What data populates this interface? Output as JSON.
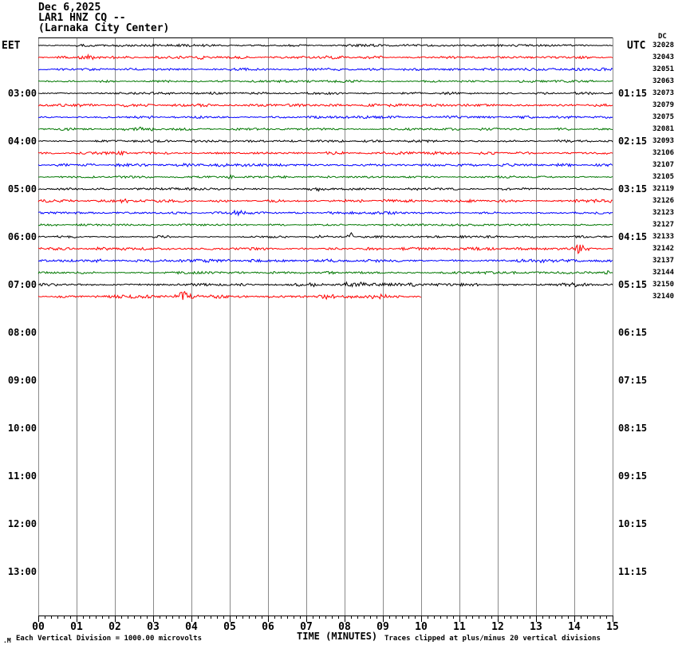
{
  "header": {
    "date": "Dec 6,2025",
    "station_line": "LAR1 HNZ CQ --",
    "location_line": "(Larnaka City Center)"
  },
  "footer": {
    "corner_mark": ".M",
    "left_note": "Each Vertical Division = 1000.00 microvolts",
    "axis_title": "TIME (MINUTES)",
    "right_note": "Traces clipped at plus/minus 20 vertical divisions"
  },
  "chart_data": {
    "type": "line",
    "title": "Helicorder seismogram LAR1 HNZ CQ -- (Larnaka City Center) Dec 6,2025",
    "x_axis": {
      "label": "TIME (MINUTES)",
      "range_minutes": [
        0,
        15
      ],
      "major_tick_every_minutes": 1,
      "minor_ticks_per_major": 5,
      "tick_labels": [
        "00",
        "01",
        "02",
        "03",
        "04",
        "05",
        "06",
        "07",
        "08",
        "09",
        "10",
        "11",
        "12",
        "13",
        "14",
        "15"
      ]
    },
    "y_axis_left": {
      "label": "EET",
      "times": [
        "03:00",
        "04:00",
        "05:00",
        "06:00",
        "07:00",
        "08:00",
        "09:00",
        "10:00",
        "11:00",
        "12:00",
        "13:00"
      ]
    },
    "y_axis_right": {
      "label": "UTC",
      "times": [
        "01:15",
        "02:15",
        "03:15",
        "04:15",
        "05:15",
        "06:15",
        "07:15",
        "08:15",
        "09:15",
        "10:15",
        "11:15"
      ]
    },
    "dc_column": {
      "label": "DC",
      "values": [
        "32028",
        "32043",
        "32051",
        "32063",
        "32073",
        "32079",
        "32075",
        "32081",
        "32093",
        "32106",
        "32107",
        "32105",
        "32119",
        "32126",
        "32123",
        "32127",
        "32133",
        "32142",
        "32137",
        "32144",
        "32150",
        "32140"
      ]
    },
    "colors": {
      "black": "#000000",
      "red": "#ff0000",
      "blue": "#0000ff",
      "green": "#007700",
      "grid": "#8a8a8a"
    },
    "minutes_per_trace": 15,
    "notes": {
      "vertical_division_microvolts": "1000.00",
      "clip_divisions": "20"
    },
    "traces": [
      {
        "color": "black",
        "dc": "32028",
        "end_minute": 15,
        "noise": 0.9,
        "events": [
          {
            "t": 4.15,
            "w": 0.15,
            "a": 2.0
          }
        ]
      },
      {
        "color": "red",
        "dc": "32043",
        "end_minute": 15,
        "noise": 1.1,
        "events": [
          {
            "t": 4.2,
            "w": 0.2,
            "a": 2.5
          },
          {
            "t": 1.3,
            "w": 0.3,
            "a": 1.8
          }
        ]
      },
      {
        "color": "blue",
        "dc": "32051",
        "end_minute": 15,
        "noise": 1.0,
        "events": [
          {
            "t": 2.5,
            "w": 0.3,
            "a": 1.8
          }
        ]
      },
      {
        "color": "green",
        "dc": "32063",
        "end_minute": 15,
        "noise": 0.85,
        "events": []
      },
      {
        "color": "black",
        "dc": "32073",
        "end_minute": 15,
        "noise": 0.9,
        "events": []
      },
      {
        "color": "red",
        "dc": "32079",
        "end_minute": 15,
        "noise": 1.1,
        "events": [
          {
            "t": 2.2,
            "w": 0.15,
            "a": 2.2
          }
        ]
      },
      {
        "color": "blue",
        "dc": "32075",
        "end_minute": 15,
        "noise": 1.0,
        "events": [
          {
            "t": 4.3,
            "w": 0.2,
            "a": 1.8
          }
        ]
      },
      {
        "color": "green",
        "dc": "32081",
        "end_minute": 15,
        "noise": 0.9,
        "events": [
          {
            "t": 2.6,
            "w": 0.5,
            "a": 1.5
          }
        ]
      },
      {
        "color": "black",
        "dc": "32093",
        "end_minute": 15,
        "noise": 0.9,
        "events": []
      },
      {
        "color": "red",
        "dc": "32106",
        "end_minute": 15,
        "noise": 1.1,
        "events": [
          {
            "t": 2.15,
            "w": 0.15,
            "a": 3.0
          }
        ]
      },
      {
        "color": "blue",
        "dc": "32107",
        "end_minute": 15,
        "noise": 1.0,
        "events": [
          {
            "t": 3.85,
            "w": 0.2,
            "a": 2.0
          },
          {
            "t": 4.8,
            "w": 0.15,
            "a": 1.8
          }
        ]
      },
      {
        "color": "green",
        "dc": "32105",
        "end_minute": 15,
        "noise": 0.85,
        "events": [
          {
            "t": 5.05,
            "w": 0.2,
            "a": 1.5
          }
        ]
      },
      {
        "color": "black",
        "dc": "32119",
        "end_minute": 15,
        "noise": 0.9,
        "events": [
          {
            "t": 7.3,
            "w": 0.2,
            "a": 2.0
          }
        ]
      },
      {
        "color": "red",
        "dc": "32126",
        "end_minute": 15,
        "noise": 1.1,
        "events": [
          {
            "t": 2.2,
            "w": 0.2,
            "a": 2.5
          }
        ]
      },
      {
        "color": "blue",
        "dc": "32123",
        "end_minute": 15,
        "noise": 1.0,
        "events": [
          {
            "t": 5.2,
            "w": 0.25,
            "a": 2.0
          }
        ]
      },
      {
        "color": "green",
        "dc": "32127",
        "end_minute": 15,
        "noise": 0.85,
        "events": []
      },
      {
        "color": "black",
        "dc": "32133",
        "end_minute": 15,
        "noise": 0.9,
        "events": [
          {
            "t": 8.15,
            "w": 0.08,
            "a": 6.0,
            "up": true
          },
          {
            "t": 7.35,
            "w": 0.2,
            "a": 2.2
          }
        ]
      },
      {
        "color": "red",
        "dc": "32142",
        "end_minute": 15,
        "noise": 1.1,
        "events": [
          {
            "t": 14.15,
            "w": 0.18,
            "a": 5.0
          }
        ]
      },
      {
        "color": "blue",
        "dc": "32137",
        "end_minute": 15,
        "noise": 1.15,
        "events": [
          {
            "t": 1.5,
            "w": 0.3,
            "a": 2.0
          },
          {
            "t": 13.3,
            "w": 0.3,
            "a": 2.0
          }
        ]
      },
      {
        "color": "green",
        "dc": "32144",
        "end_minute": 15,
        "noise": 0.9,
        "events": [
          {
            "t": 14.8,
            "w": 0.2,
            "a": 2.0
          }
        ]
      },
      {
        "color": "black",
        "dc": "32150",
        "end_minute": 15,
        "noise": 1.1,
        "events": [
          {
            "t": 7.0,
            "w": 0.4,
            "a": 1.6
          },
          {
            "t": 8.2,
            "w": 0.6,
            "a": 1.6
          },
          {
            "t": 9.7,
            "w": 0.2,
            "a": 2.8
          },
          {
            "t": 14.0,
            "w": 0.3,
            "a": 2.0
          }
        ]
      },
      {
        "color": "red",
        "dc": "32140",
        "end_minute": 10,
        "noise": 1.3,
        "events": [
          {
            "t": 3.78,
            "w": 0.12,
            "a": 8.0
          },
          {
            "t": 3.95,
            "w": 0.35,
            "a": 3.0
          },
          {
            "t": 7.6,
            "w": 0.3,
            "a": 2.5
          },
          {
            "t": 8.9,
            "w": 0.25,
            "a": 2.0
          }
        ]
      }
    ]
  }
}
